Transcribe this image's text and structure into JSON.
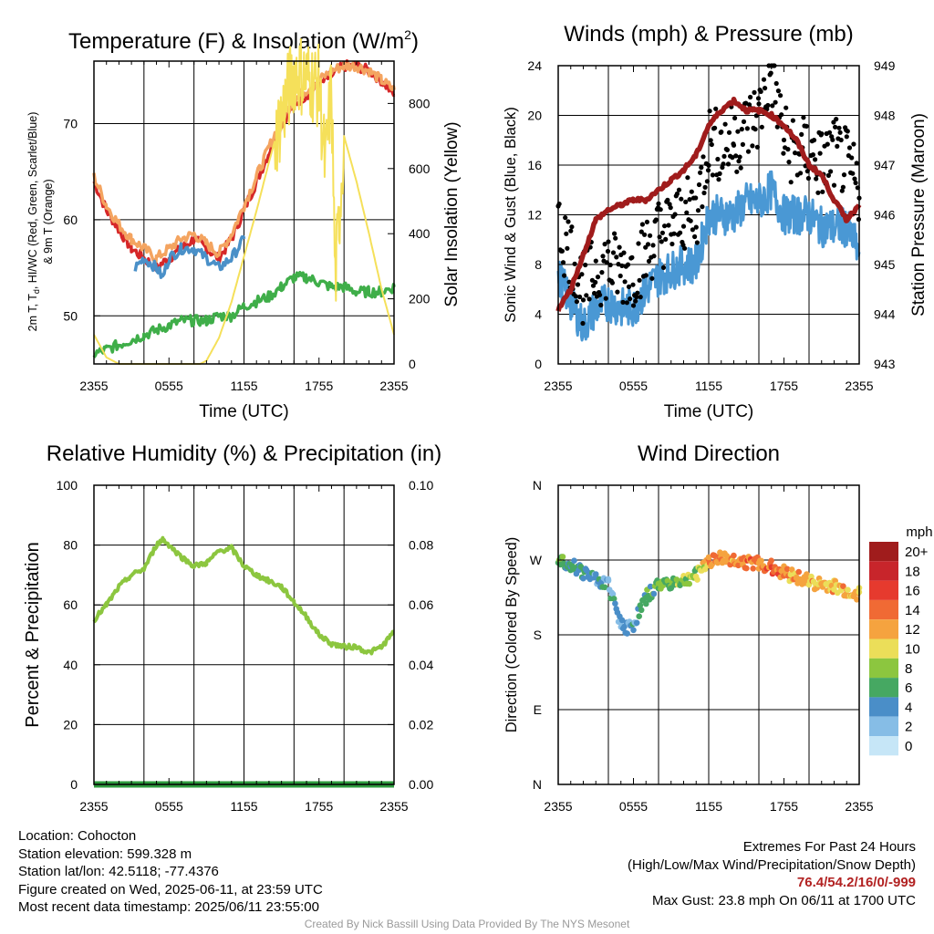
{
  "time_ticks": [
    "2355",
    "0555",
    "1155",
    "1755",
    "2355"
  ],
  "time_xlabel": "Time (UTC)",
  "colors": {
    "temp": "#d62728",
    "dewpoint": "#3fae49",
    "heat_index": "#f07a2d",
    "nine_m": "#f4a460",
    "wind_chill": "#4a90c8",
    "insolation": "#f5e05a",
    "wind": "#4a98d4",
    "gust": "#000000",
    "pressure": "#a01c1c",
    "rh": "#8cc63f",
    "precip": "#2e9a3e"
  },
  "chart_data": [
    {
      "type": "line",
      "id": "temperature",
      "title": "Temperature (F) & Insolation (W/m",
      "title_sup": "2",
      "title_end": ")",
      "ylabel_line1": "2m T, T",
      "ylabel_sub": "d",
      "ylabel_line1_end": ", HI/WC (Red, Green, Scarlet/Blue)",
      "ylabel_line2": "& 9m T (Orange)",
      "y2label": "Solar Insolation (Yellow)",
      "xlim": [
        0,
        24
      ],
      "ylim": [
        45,
        76.5
      ],
      "yticks": [
        "50",
        "60",
        "70"
      ],
      "ytick_values": [
        50,
        60,
        70
      ],
      "y2lim": [
        0,
        930
      ],
      "y2ticks": [
        "0",
        "200",
        "400",
        "600",
        "800"
      ],
      "y2tick_values": [
        0,
        200,
        400,
        600,
        800
      ],
      "series": [
        {
          "key": "temp",
          "axis": "left",
          "x": [
            0,
            1,
            2,
            3,
            4,
            5,
            6,
            7,
            8,
            9,
            10,
            11,
            12,
            13,
            14,
            15,
            16,
            17,
            18,
            19,
            20,
            21,
            22,
            23,
            24
          ],
          "values": [
            64,
            61,
            59,
            57,
            56,
            55,
            56,
            57,
            58,
            57,
            56,
            58,
            61,
            64,
            67,
            70,
            72,
            73,
            74,
            75,
            76,
            76,
            75.5,
            74.5,
            73
          ]
        },
        {
          "key": "nine_m",
          "axis": "left",
          "x": [
            0,
            1,
            2,
            3,
            4,
            5,
            6,
            7,
            8,
            9,
            10,
            11,
            12,
            13,
            14,
            15,
            16,
            17,
            18,
            19,
            20,
            21,
            22,
            23,
            24
          ],
          "values": [
            64.5,
            61.5,
            59.5,
            58,
            57,
            56,
            57,
            58,
            58.5,
            57.5,
            56.5,
            58.5,
            61.5,
            64.5,
            67.5,
            70.5,
            72.5,
            73.5,
            74.5,
            75.5,
            76,
            76,
            75.5,
            74.5,
            73.5
          ]
        },
        {
          "key": "wind_chill",
          "axis": "left",
          "x": [
            3.3,
            4,
            5,
            5.5,
            6,
            7,
            8,
            9,
            10,
            11,
            12
          ],
          "values": [
            55,
            56,
            55,
            54,
            56,
            57,
            57,
            56,
            55,
            56,
            58
          ]
        },
        {
          "key": "dewpoint",
          "axis": "left",
          "x": [
            0,
            1,
            2,
            3,
            4,
            5,
            6,
            7,
            8,
            9,
            10,
            11,
            12,
            13,
            14,
            15,
            16,
            17,
            18,
            19,
            20,
            21,
            22,
            23,
            24
          ],
          "values": [
            46,
            46.5,
            47,
            47.5,
            48,
            48.5,
            49,
            49.5,
            49.5,
            49.5,
            50,
            50,
            51,
            51.5,
            52,
            53,
            54,
            54,
            53.5,
            53,
            53,
            52.5,
            52.5,
            52.5,
            53
          ]
        },
        {
          "key": "insolation",
          "axis": "right",
          "x": [
            0,
            1,
            2,
            3,
            4,
            5,
            6,
            7,
            8,
            8.5,
            9,
            10,
            11,
            12,
            13,
            14,
            15,
            16,
            17,
            18,
            18.5,
            19,
            19.3,
            20,
            21,
            22,
            23,
            24
          ],
          "values": [
            90,
            20,
            0,
            0,
            0,
            0,
            0,
            0,
            0,
            0,
            10,
            80,
            190,
            330,
            470,
            620,
            760,
            900,
            880,
            850,
            600,
            850,
            250,
            700,
            560,
            400,
            230,
            90
          ]
        }
      ]
    },
    {
      "type": "line",
      "id": "winds",
      "title": "Winds (mph) & Pressure (mb)",
      "ylabel": "Sonic Wind & Gust (Blue, Black)",
      "y2label": "Station Pressure (Maroon)",
      "xlim": [
        0,
        24
      ],
      "ylim": [
        0,
        24
      ],
      "yticks": [
        "0",
        "4",
        "8",
        "12",
        "16",
        "20",
        "24"
      ],
      "ytick_values": [
        0,
        4,
        8,
        12,
        16,
        20,
        24
      ],
      "y2lim": [
        943,
        949
      ],
      "y2ticks": [
        "943",
        "944",
        "945",
        "946",
        "947",
        "948",
        "949"
      ],
      "y2tick_values": [
        943,
        944,
        945,
        946,
        947,
        948,
        949
      ],
      "series": [
        {
          "key": "wind",
          "axis": "left",
          "type": "line",
          "x": [
            0,
            1,
            2,
            3,
            4,
            5,
            6,
            7,
            8,
            9,
            10,
            11,
            12,
            13,
            14,
            15,
            16,
            17,
            18,
            19,
            20,
            21,
            22,
            23,
            24
          ],
          "values": [
            7,
            5,
            3,
            4.5,
            5,
            4.5,
            4.5,
            6,
            7,
            7.5,
            8,
            8,
            12,
            12,
            12,
            13,
            13,
            14,
            12,
            12,
            12,
            11,
            11,
            11,
            9
          ]
        },
        {
          "key": "gust",
          "axis": "left",
          "type": "scatter",
          "x": [
            0,
            1,
            2,
            3,
            4,
            5,
            6,
            7,
            8,
            9,
            10,
            11,
            12,
            13,
            14,
            15,
            16,
            17,
            18,
            19,
            20,
            21,
            22,
            23,
            24
          ],
          "values": [
            11,
            9,
            6,
            7.5,
            8,
            7.5,
            7.5,
            9,
            10.5,
            11,
            12,
            12,
            18,
            17.5,
            18,
            19,
            20,
            23.8,
            18,
            17,
            17,
            16,
            17,
            16,
            14
          ]
        },
        {
          "key": "pressure",
          "axis": "right",
          "type": "line",
          "x": [
            0,
            1,
            2,
            3,
            4,
            5,
            6,
            7,
            8,
            9,
            10,
            11,
            12,
            13,
            14,
            15,
            16,
            17,
            18,
            19,
            20,
            21,
            22,
            23,
            24
          ],
          "values": [
            944.1,
            944.5,
            945.2,
            945.9,
            946.1,
            946.2,
            946.3,
            946.3,
            946.5,
            946.7,
            946.9,
            947.2,
            947.8,
            948.1,
            948.3,
            948.1,
            948.1,
            948,
            947.8,
            947.5,
            947,
            946.8,
            946.3,
            945.9,
            946.2
          ]
        }
      ]
    },
    {
      "type": "line",
      "id": "humidity",
      "title": "Relative Humidity (%) & Precipitation (in)",
      "ylabel": "Percent & Precipitation",
      "xlim": [
        0,
        24
      ],
      "ylim": [
        0,
        100
      ],
      "yticks": [
        "0",
        "20",
        "40",
        "60",
        "80",
        "100"
      ],
      "ytick_values": [
        0,
        20,
        40,
        60,
        80,
        100
      ],
      "y2lim": [
        0,
        0.1
      ],
      "y2ticks": [
        "0.00",
        "0.02",
        "0.04",
        "0.06",
        "0.08",
        "0.10"
      ],
      "y2tick_values": [
        0,
        0.02,
        0.04,
        0.06,
        0.08,
        0.1
      ],
      "series": [
        {
          "key": "rh",
          "axis": "left",
          "x": [
            0,
            1,
            2,
            3,
            4,
            5,
            5.5,
            6,
            7,
            8,
            9,
            10,
            11,
            12,
            13,
            14,
            15,
            16,
            17,
            18,
            19,
            20,
            21,
            22,
            23,
            24
          ],
          "values": [
            55,
            60,
            66,
            70,
            72,
            80,
            82,
            80,
            76,
            73,
            74,
            78,
            79,
            73,
            70,
            68,
            66,
            61,
            56,
            50,
            47,
            46,
            46,
            44,
            46,
            51
          ]
        },
        {
          "key": "precip",
          "axis": "right",
          "x": [
            0,
            24
          ],
          "values": [
            0,
            0
          ]
        }
      ]
    },
    {
      "type": "scatter",
      "id": "wind-direction",
      "title": "Wind Direction",
      "ylabel": "Direction (Colored By Speed)",
      "xlim": [
        0,
        24
      ],
      "ylim": [
        0,
        360
      ],
      "yticks": [
        "N",
        "E",
        "S",
        "W",
        "N"
      ],
      "ytick_values": [
        0,
        90,
        180,
        270,
        360
      ],
      "legend": {
        "title": "mph",
        "position": "right",
        "labels": [
          "20+",
          "18",
          "16",
          "14",
          "12",
          "10",
          "8",
          "6",
          "4",
          "2",
          "0"
        ],
        "colors": [
          "#a01c1c",
          "#c8252b",
          "#e63a2e",
          "#f06a34",
          "#f5a33f",
          "#ebde59",
          "#8cc63f",
          "#46a862",
          "#4a8ec8",
          "#86bde6",
          "#c6e6f7"
        ]
      },
      "series": [
        {
          "name": "",
          "x": [
            0,
            1,
            2,
            3,
            4,
            5,
            5.5,
            6,
            7,
            8,
            9,
            10,
            11,
            12,
            13,
            14,
            15,
            16,
            17,
            18,
            19,
            20,
            21,
            22,
            23,
            24
          ],
          "values": [
            272,
            265,
            255,
            248,
            240,
            195,
            188,
            192,
            225,
            240,
            243,
            245,
            252,
            270,
            272,
            270,
            268,
            265,
            262,
            255,
            250,
            245,
            240,
            238,
            232,
            230
          ],
          "speeds": [
            6,
            5,
            4,
            4,
            4,
            3,
            3,
            4,
            6,
            7,
            7,
            8,
            8,
            12,
            13,
            12,
            14,
            13,
            15,
            13,
            12,
            11,
            12,
            11,
            12,
            10
          ]
        }
      ]
    }
  ],
  "info_left": {
    "location": "Location: Cohocton",
    "elevation": "Station elevation: 599.328 m",
    "latlon": "Station lat/lon: 42.5118; -77.4376",
    "created": "Figure created on Wed, 2025-06-11, at 23:59 UTC",
    "recent": "Most recent data timestamp: 2025/06/11 23:55:00"
  },
  "info_right": {
    "heading": "Extremes For Past 24 Hours",
    "subheading": "(High/Low/Max Wind/Precipitation/Snow Depth)",
    "values": "76.4/54.2/16/0/-999",
    "gust": "Max Gust: 23.8 mph On 06/11 at 1700 UTC"
  },
  "credit": "Created By Nick Bassill Using Data Provided By The NYS Mesonet"
}
